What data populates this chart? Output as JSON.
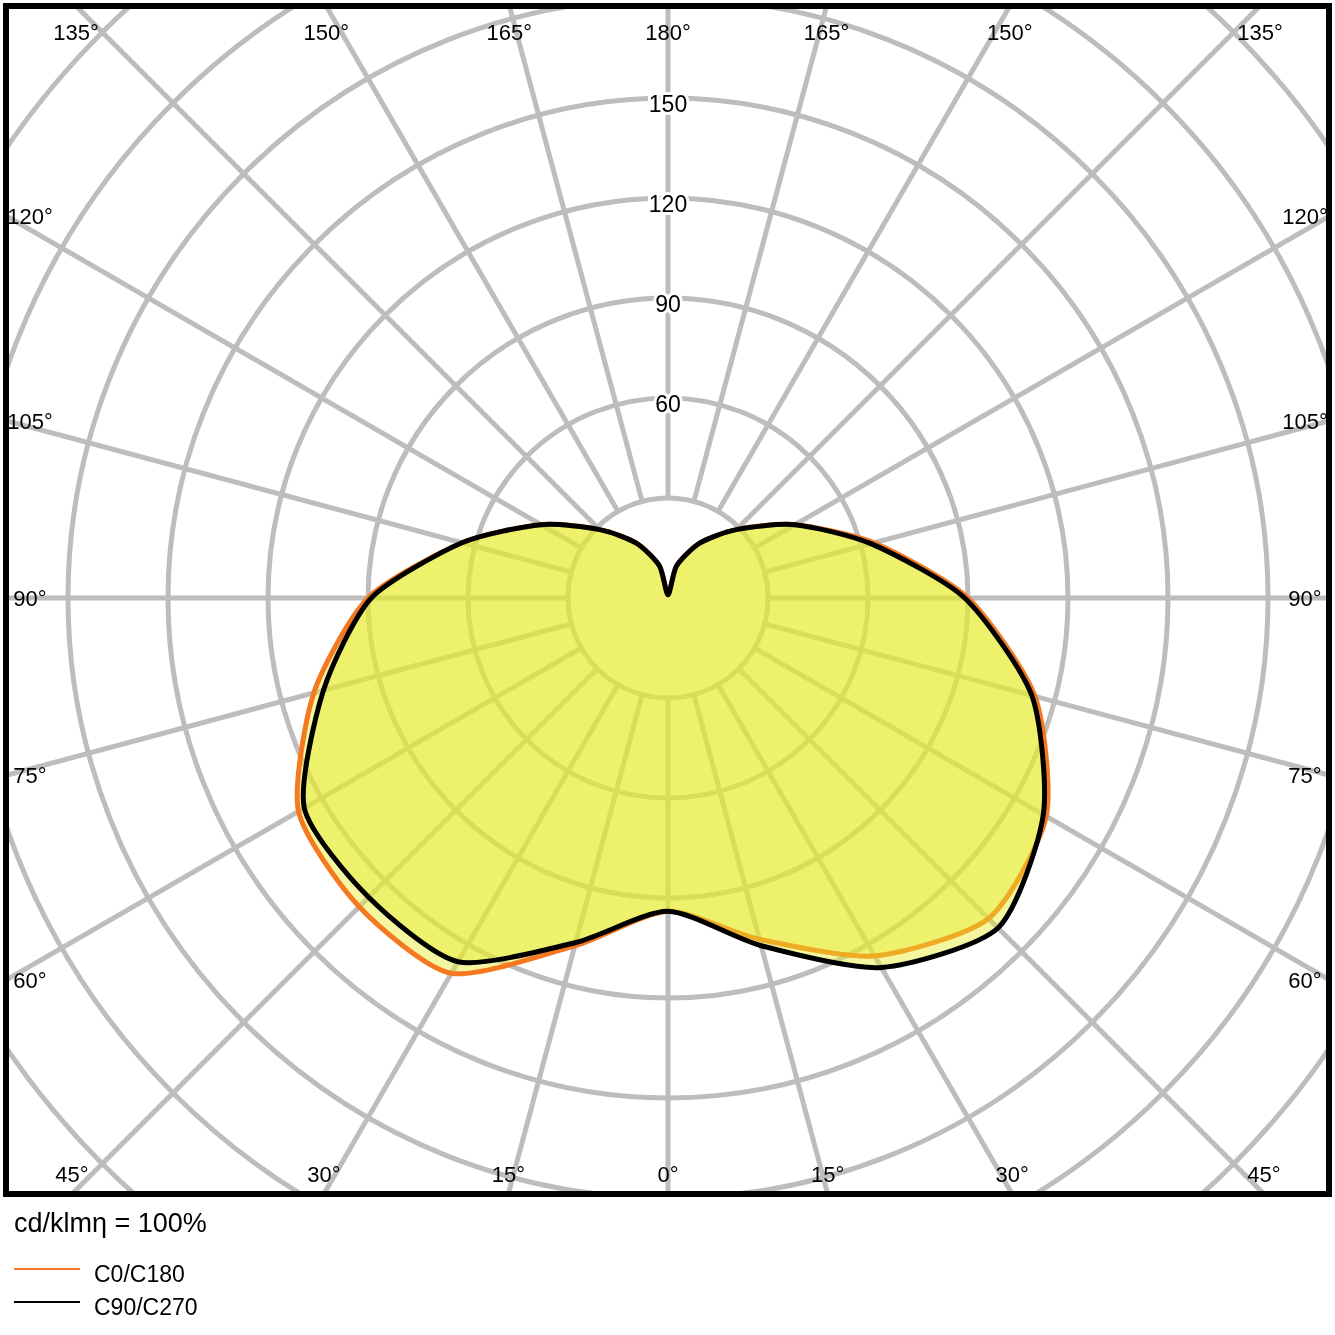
{
  "chart_data": {
    "type": "radar",
    "categories": [
      "180°",
      "165°",
      "150°",
      "135°",
      "120°",
      "105°",
      "90°",
      "75°",
      "60°",
      "45°",
      "30°",
      "15°",
      "0°",
      "15°",
      "30°",
      "45°",
      "60°",
      "75°",
      "90°",
      "105°",
      "120°",
      "135°",
      "150°",
      "165°"
    ],
    "series": [
      {
        "name": "C0/C180",
        "color": "#f47920",
        "values": [
          1,
          10,
          19,
          29,
          44,
          64,
          90,
          114,
          131,
          136,
          124,
          106,
          94,
          108,
          130,
          131,
          128,
          110,
          90,
          64,
          44,
          29,
          19,
          10
        ]
      },
      {
        "name": "C90/C270",
        "color": "#000000",
        "values": [
          1,
          10,
          19,
          29,
          44,
          63,
          89,
          113,
          130,
          140,
          128,
          108,
          94,
          107,
          126,
          127,
          126,
          107,
          89,
          64,
          44,
          29,
          19,
          10
        ]
      }
    ],
    "ylim": [
      0,
      240
    ],
    "yticks": [
      60,
      90,
      120,
      150
    ],
    "grid": true,
    "legend": "bottom left",
    "annotations": [
      "cd/klmη = 100%"
    ]
  }
}
